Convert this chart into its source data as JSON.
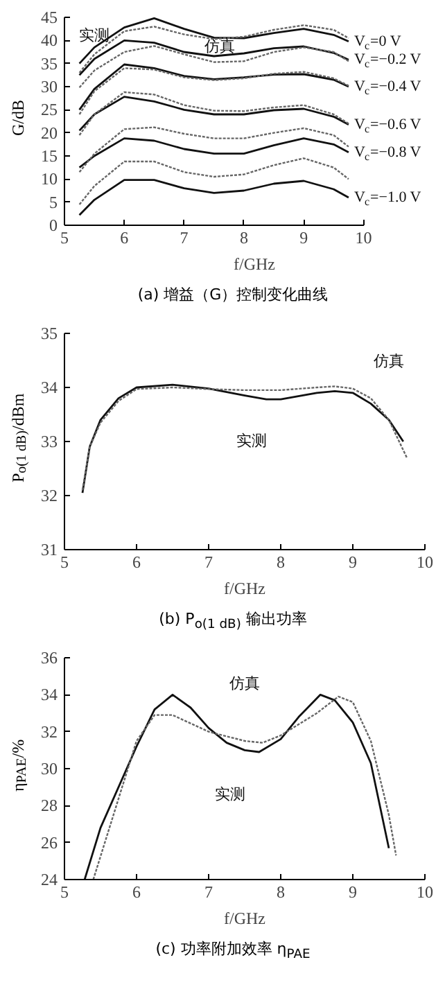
{
  "chart_data": [
    {
      "type": "line",
      "title": "(a) 增益（G）控制变化曲线",
      "xlabel": "f/GHz",
      "ylabel": "G/dB",
      "xlim": [
        5,
        10
      ],
      "ylim": [
        0,
        45
      ],
      "xticks": [
        5,
        6,
        7,
        8,
        9,
        10
      ],
      "yticks": [
        0,
        5,
        10,
        15,
        20,
        25,
        30,
        35,
        40,
        45
      ],
      "grid": false,
      "x": [
        5.25,
        5.5,
        6,
        6.5,
        7,
        7.5,
        8,
        8.5,
        9,
        9.5,
        9.75
      ],
      "series": [
        {
          "name": "V$_{c}$=0 V",
          "color": "#111111",
          "line_style": "solid",
          "values": [
            35,
            38.5,
            42.8,
            44.8,
            42.5,
            40.6,
            40.5,
            41.6,
            42.5,
            41.2,
            39.8
          ]
        },
        {
          "color": "#666666",
          "line_style": "dotted",
          "values": [
            33,
            37,
            42,
            43,
            41.3,
            40.3,
            40.8,
            42.3,
            43.3,
            42.3,
            40.5
          ]
        },
        {
          "name": "V$_{c}$=−0.2 V",
          "color": "#111111",
          "line_style": "solid",
          "values": [
            32.5,
            36,
            40,
            39.5,
            37.5,
            36.6,
            37.2,
            38.3,
            38.7,
            37.3,
            35.8
          ]
        },
        {
          "color": "#666666",
          "line_style": "dotted",
          "values": [
            29.8,
            33.5,
            37.5,
            38.8,
            37,
            35.3,
            35.5,
            37.5,
            38.5,
            37.5,
            35.5
          ]
        },
        {
          "name": "V$_{c}$=−0.4 V",
          "color": "#111111",
          "line_style": "solid",
          "values": [
            25,
            29.5,
            34.8,
            34,
            32.3,
            31.6,
            32,
            32.6,
            32.7,
            31.5,
            30
          ]
        },
        {
          "color": "#666666",
          "line_style": "dotted",
          "values": [
            24,
            29,
            34,
            33.7,
            32,
            31.4,
            31.8,
            32.8,
            33.2,
            31.8,
            30.2
          ]
        },
        {
          "name": "V$_{c}$=−0.6 V",
          "color": "#111111",
          "line_style": "solid",
          "values": [
            20.5,
            24,
            27.8,
            26.8,
            25,
            24,
            24,
            24.9,
            25.2,
            23.5,
            21.8
          ]
        },
        {
          "color": "#666666",
          "line_style": "dotted",
          "values": [
            19.5,
            24,
            28.8,
            28.3,
            26,
            24.8,
            24.7,
            25.5,
            26,
            24,
            22
          ]
        },
        {
          "name": "V$_{c}$=−0.8 V",
          "color": "#111111",
          "line_style": "solid",
          "values": [
            12.5,
            15,
            18.8,
            18.3,
            16.5,
            15.5,
            15.5,
            17.3,
            18.8,
            17.5,
            15.8
          ]
        },
        {
          "color": "#666666",
          "line_style": "dotted",
          "values": [
            11.5,
            15.5,
            20.8,
            21.2,
            19.8,
            18.8,
            18.8,
            20,
            21,
            19.5,
            17
          ]
        },
        {
          "name": "V$_{c}$=−1.0 V",
          "color": "#111111",
          "line_style": "solid",
          "values": [
            2.2,
            5.5,
            9.8,
            9.8,
            8,
            7,
            7.5,
            9,
            9.6,
            7.8,
            6
          ]
        },
        {
          "color": "#666666",
          "line_style": "dotted",
          "values": [
            4.5,
            8.5,
            13.8,
            13.8,
            11.5,
            10.5,
            11,
            13,
            14.5,
            12.5,
            10
          ]
        }
      ],
      "annotations": [
        "实测",
        "仿真"
      ]
    },
    {
      "type": "line",
      "title": "(b) P$_{o(1 dB)}$ 输出功率",
      "xlabel": "f/GHz",
      "ylabel": "P$_{o(1 dB)}$/dBm",
      "xlim": [
        5,
        10
      ],
      "ylim": [
        31,
        35
      ],
      "xticks": [
        5,
        6,
        7,
        8,
        9,
        10
      ],
      "yticks": [
        31,
        32,
        33,
        34,
        35
      ],
      "grid": false,
      "series": [
        {
          "color": "#111111",
          "line_style": "solid",
          "x": [
            5.25,
            5.35,
            5.5,
            5.75,
            6,
            6.5,
            7,
            7.5,
            7.8,
            8,
            8.5,
            8.75,
            9,
            9.25,
            9.5,
            9.7
          ],
          "values": [
            32.05,
            32.9,
            33.4,
            33.8,
            34.0,
            34.05,
            33.98,
            33.85,
            33.78,
            33.78,
            33.9,
            33.93,
            33.9,
            33.7,
            33.4,
            33.0
          ]
        },
        {
          "color": "#666666",
          "line_style": "dotted",
          "x": [
            5.25,
            5.35,
            5.5,
            5.75,
            6,
            6.5,
            7,
            7.5,
            8,
            8.5,
            8.75,
            9,
            9.25,
            9.5,
            9.75
          ],
          "values": [
            32.1,
            32.9,
            33.35,
            33.75,
            33.97,
            34.0,
            33.97,
            33.95,
            33.95,
            34.0,
            34.02,
            33.98,
            33.8,
            33.4,
            32.7
          ]
        }
      ],
      "annotations": [
        "仿真",
        "实测"
      ]
    },
    {
      "type": "line",
      "title": "(c) 功率附加效率 η$_{PAE}$",
      "xlabel": "f/GHz",
      "ylabel": "η$_{PAE}$/%",
      "xlim": [
        5,
        10
      ],
      "ylim": [
        24,
        36
      ],
      "xticks": [
        5,
        6,
        7,
        8,
        9,
        10
      ],
      "yticks": [
        24,
        26,
        28,
        30,
        32,
        34,
        36
      ],
      "grid": false,
      "series": [
        {
          "color": "#111111",
          "line_style": "solid",
          "x": [
            5.28,
            5.5,
            6,
            6.25,
            6.5,
            6.75,
            7,
            7.25,
            7.5,
            7.7,
            8,
            8.25,
            8.55,
            8.75,
            9,
            9.25,
            9.5
          ],
          "values": [
            24,
            26.8,
            31.2,
            33.2,
            34,
            33.3,
            32.2,
            31.4,
            31.0,
            30.9,
            31.6,
            32.8,
            34,
            33.7,
            32.5,
            30.3,
            25.7
          ]
        },
        {
          "color": "#666666",
          "line_style": "dotted",
          "x": [
            5.4,
            5.6,
            6,
            6.25,
            6.5,
            7,
            7.5,
            7.75,
            8,
            8.5,
            8.8,
            9,
            9.25,
            9.5,
            9.6
          ],
          "values": [
            24,
            26.5,
            31.5,
            32.9,
            32.9,
            32.0,
            31.5,
            31.4,
            31.8,
            33.0,
            33.9,
            33.6,
            31.5,
            27.5,
            25.3
          ]
        }
      ],
      "annotations": [
        "仿真",
        "实测"
      ]
    }
  ]
}
